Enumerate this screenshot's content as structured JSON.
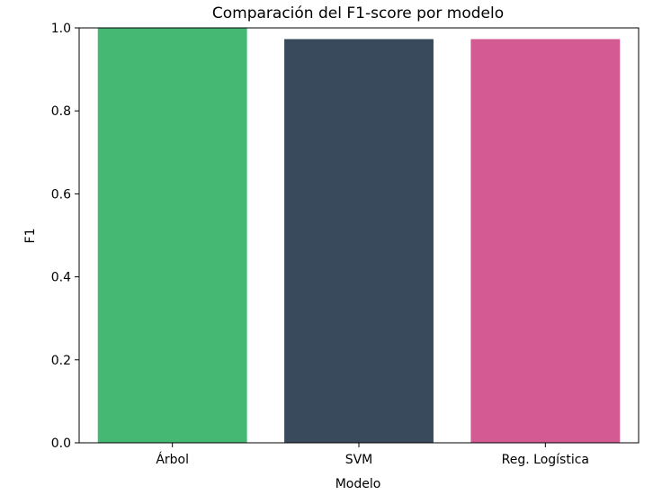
{
  "chart_data": {
    "type": "bar",
    "title": "Comparación del F1-score por modelo",
    "xlabel": "Modelo",
    "ylabel": "F1",
    "categories": [
      "Árbol",
      "SVM",
      "Reg. Logística"
    ],
    "values": [
      1.0,
      0.973,
      0.973
    ],
    "colors": [
      "#45b874",
      "#384a5c",
      "#d45a94"
    ],
    "ylim": [
      0.0,
      1.0
    ],
    "yticks": [
      "0.0",
      "0.2",
      "0.4",
      "0.6",
      "0.8",
      "1.0"
    ],
    "grid": false
  }
}
